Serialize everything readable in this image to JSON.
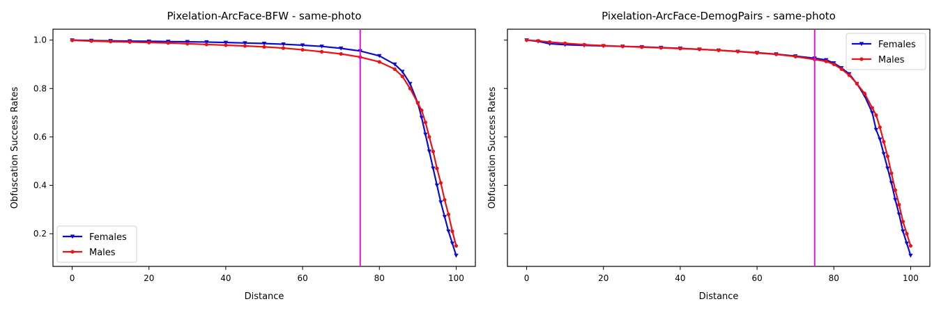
{
  "colors": {
    "females": "#0a0ad6",
    "males": "#ee1111",
    "vline": "#dd11dd"
  },
  "chart_data": [
    {
      "type": "line",
      "title": "Pixelation-ArcFace-BFW - same-photo",
      "xlabel": "Distance",
      "ylabel": "Obfuscation Success Rates",
      "xlim": [
        -5,
        105
      ],
      "ylim": [
        0.065,
        1.045
      ],
      "xticks": [
        "0",
        "20",
        "40",
        "60",
        "80",
        "100"
      ],
      "yticks": [
        "0.2",
        "0.4",
        "0.6",
        "0.8",
        "1.0"
      ],
      "vline_x": 75,
      "legend_position": "lower-left",
      "series": [
        {
          "name": "Females",
          "marker": "triangle-down",
          "x": [
            0,
            5,
            10,
            15,
            20,
            25,
            30,
            35,
            40,
            45,
            50,
            55,
            60,
            65,
            70,
            75,
            80,
            84,
            86,
            88,
            90,
            91,
            92,
            93,
            94,
            95,
            96,
            97,
            98,
            99,
            100
          ],
          "y": [
            1.0,
            0.998,
            0.997,
            0.996,
            0.995,
            0.994,
            0.993,
            0.992,
            0.99,
            0.988,
            0.986,
            0.983,
            0.979,
            0.974,
            0.966,
            0.955,
            0.935,
            0.9,
            0.87,
            0.82,
            0.74,
            0.68,
            0.61,
            0.54,
            0.47,
            0.4,
            0.33,
            0.27,
            0.21,
            0.16,
            0.11
          ]
        },
        {
          "name": "Males",
          "marker": "circle",
          "x": [
            0,
            5,
            10,
            15,
            20,
            25,
            30,
            35,
            40,
            45,
            50,
            55,
            60,
            65,
            70,
            75,
            80,
            84,
            86,
            88,
            90,
            91,
            92,
            93,
            94,
            95,
            96,
            97,
            98,
            99,
            100
          ],
          "y": [
            0.999,
            0.996,
            0.994,
            0.992,
            0.99,
            0.988,
            0.985,
            0.982,
            0.979,
            0.976,
            0.972,
            0.967,
            0.96,
            0.952,
            0.943,
            0.93,
            0.91,
            0.88,
            0.85,
            0.8,
            0.74,
            0.71,
            0.66,
            0.6,
            0.54,
            0.47,
            0.41,
            0.34,
            0.28,
            0.21,
            0.15
          ]
        }
      ]
    },
    {
      "type": "line",
      "title": "Pixelation-ArcFace-DemogPairs - same-photo",
      "xlabel": "Distance",
      "ylabel": "Obfuscation Success Rates",
      "xlim": [
        -5,
        105
      ],
      "ylim": [
        0.065,
        1.045
      ],
      "xticks": [
        "0",
        "20",
        "40",
        "60",
        "80",
        "100"
      ],
      "yticks": [
        "0.2",
        "0.4",
        "0.6",
        "0.8",
        "1.0"
      ],
      "vline_x": 75,
      "legend_position": "upper-right",
      "series": [
        {
          "name": "Females",
          "marker": "triangle-down",
          "x": [
            0,
            3,
            6,
            10,
            15,
            20,
            25,
            30,
            35,
            40,
            45,
            50,
            55,
            60,
            65,
            70,
            75,
            78,
            80,
            82,
            84,
            86,
            88,
            90,
            91,
            92,
            93,
            94,
            95,
            96,
            97,
            98,
            99,
            100
          ],
          "y": [
            1.0,
            0.995,
            0.985,
            0.981,
            0.978,
            0.976,
            0.974,
            0.972,
            0.969,
            0.966,
            0.962,
            0.958,
            0.953,
            0.948,
            0.942,
            0.934,
            0.925,
            0.918,
            0.905,
            0.885,
            0.86,
            0.82,
            0.77,
            0.7,
            0.63,
            0.59,
            0.53,
            0.47,
            0.41,
            0.34,
            0.28,
            0.21,
            0.16,
            0.11
          ]
        },
        {
          "name": "Males",
          "marker": "circle",
          "x": [
            0,
            3,
            6,
            10,
            15,
            20,
            25,
            30,
            35,
            40,
            45,
            50,
            55,
            60,
            65,
            70,
            75,
            78,
            80,
            82,
            84,
            86,
            88,
            90,
            91,
            92,
            93,
            94,
            95,
            96,
            97,
            98,
            99,
            100
          ],
          "y": [
            1.0,
            0.997,
            0.992,
            0.987,
            0.981,
            0.977,
            0.974,
            0.971,
            0.968,
            0.965,
            0.962,
            0.958,
            0.953,
            0.947,
            0.941,
            0.932,
            0.92,
            0.912,
            0.9,
            0.88,
            0.855,
            0.82,
            0.78,
            0.72,
            0.69,
            0.64,
            0.58,
            0.52,
            0.45,
            0.38,
            0.32,
            0.25,
            0.2,
            0.15
          ]
        }
      ]
    }
  ]
}
